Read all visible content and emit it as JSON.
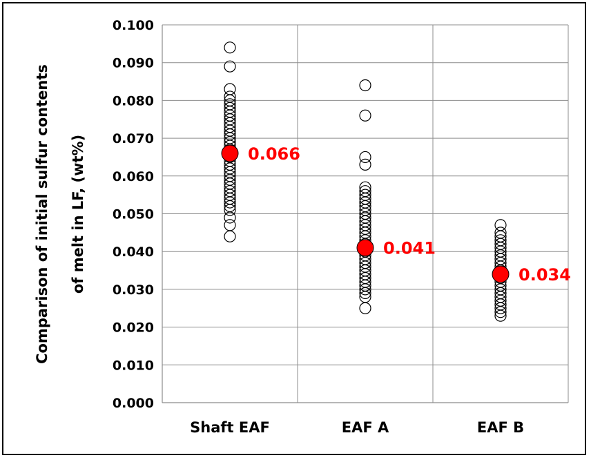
{
  "chart_data": {
    "type": "scatter",
    "title": "",
    "xlabel": "",
    "ylabel_line1": "Comparison of initial sulfur contents",
    "ylabel_line2": "of melt in LF, (wt%)",
    "ylim": [
      0,
      0.1
    ],
    "ytick_values": [
      0.0,
      0.01,
      0.02,
      0.03,
      0.04,
      0.05,
      0.06,
      0.07,
      0.08,
      0.09,
      0.1
    ],
    "ytick_labels": [
      "0.000",
      "0.010",
      "0.020",
      "0.030",
      "0.040",
      "0.050",
      "0.060",
      "0.070",
      "0.080",
      "0.090",
      "0.100"
    ],
    "categories": [
      "Shaft EAF",
      "EAF A",
      "EAF B"
    ],
    "grid": true,
    "series": [
      {
        "values": [
          [
            0.094,
            0.089,
            0.083,
            0.081,
            0.08,
            0.079,
            0.078,
            0.077,
            0.076,
            0.075,
            0.074,
            0.073,
            0.072,
            0.071,
            0.07,
            0.069,
            0.068,
            0.067,
            0.066,
            0.065,
            0.064,
            0.063,
            0.062,
            0.061,
            0.06,
            0.059,
            0.058,
            0.057,
            0.056,
            0.055,
            0.054,
            0.053,
            0.052,
            0.051,
            0.049,
            0.047,
            0.044
          ],
          [
            0.084,
            0.076,
            0.065,
            0.063,
            0.057,
            0.056,
            0.055,
            0.054,
            0.053,
            0.052,
            0.051,
            0.05,
            0.049,
            0.048,
            0.047,
            0.046,
            0.045,
            0.044,
            0.043,
            0.042,
            0.041,
            0.04,
            0.039,
            0.038,
            0.037,
            0.036,
            0.035,
            0.034,
            0.033,
            0.032,
            0.031,
            0.03,
            0.029,
            0.028,
            0.025
          ],
          [
            0.047,
            0.045,
            0.044,
            0.043,
            0.042,
            0.041,
            0.04,
            0.039,
            0.038,
            0.037,
            0.036,
            0.035,
            0.034,
            0.033,
            0.032,
            0.031,
            0.03,
            0.029,
            0.028,
            0.027,
            0.026,
            0.025,
            0.024,
            0.023
          ]
        ],
        "marker": "open-circle",
        "color": "#000000"
      },
      {
        "values": [
          0.066,
          0.041,
          0.034
        ],
        "data_labels": [
          "0.066",
          "0.041",
          "0.034"
        ],
        "marker": "filled-circle",
        "color": "#ff0000"
      }
    ]
  }
}
